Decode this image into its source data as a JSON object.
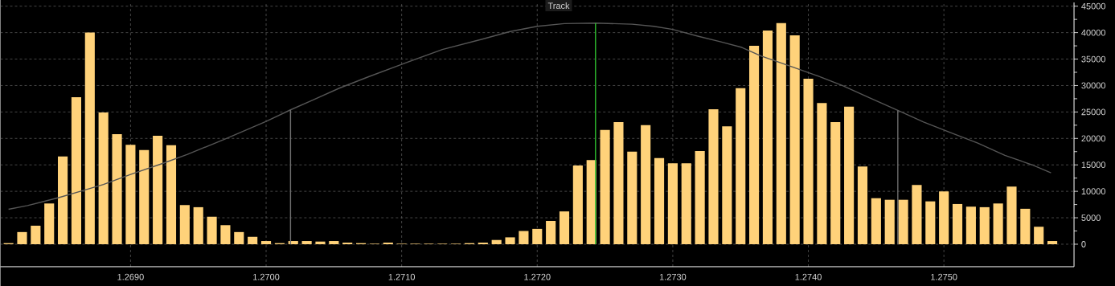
{
  "chart_data": {
    "type": "bar",
    "x": [
      1.2681,
      1.2682,
      1.2683,
      1.2684,
      1.2685,
      1.2686,
      1.2687,
      1.2688,
      1.2689,
      1.269,
      1.2691,
      1.2692,
      1.2693,
      1.2694,
      1.2695,
      1.2696,
      1.2697,
      1.2698,
      1.2699,
      1.27,
      1.2701,
      1.2702,
      1.2703,
      1.2704,
      1.2705,
      1.2706,
      1.2707,
      1.2708,
      1.2709,
      1.271,
      1.2711,
      1.2712,
      1.2713,
      1.2714,
      1.2715,
      1.2716,
      1.2717,
      1.2718,
      1.2719,
      1.272,
      1.2721,
      1.2722,
      1.2723,
      1.2724,
      1.2725,
      1.2726,
      1.2727,
      1.2728,
      1.2729,
      1.273,
      1.2731,
      1.2732,
      1.2733,
      1.2734,
      1.2735,
      1.2736,
      1.2737,
      1.2738,
      1.2739,
      1.274,
      1.2741,
      1.2742,
      1.2743,
      1.2744,
      1.2745,
      1.2746,
      1.2747,
      1.2748,
      1.2749,
      1.275,
      1.2751,
      1.2752,
      1.2753,
      1.2754,
      1.2755,
      1.2756,
      1.2757,
      1.2758
    ],
    "series": [
      {
        "color": "#ffd27a",
        "values": [
          200,
          2300,
          3500,
          7700,
          16600,
          27800,
          40000,
          24900,
          20800,
          18800,
          17800,
          20500,
          18700,
          7400,
          7000,
          5200,
          3600,
          2300,
          1400,
          600,
          200,
          600,
          600,
          500,
          600,
          300,
          200,
          100,
          300,
          100,
          100,
          100,
          100,
          100,
          200,
          300,
          800,
          1300,
          2500,
          2900,
          4400,
          6200,
          14900,
          15900,
          21600,
          23100,
          17500,
          22500,
          16300,
          15300,
          15300,
          17600,
          25500,
          22300,
          29500,
          37500,
          40400,
          41800,
          39500,
          31300,
          26700,
          23100,
          26000,
          14700,
          8700,
          8400,
          8400,
          11200,
          8100,
          10000,
          7600,
          7100,
          7000,
          7700,
          10900,
          6700,
          3300,
          600
        ]
      },
      {
        "type": "line",
        "color": "#555555",
        "x": [
          1.2681,
          1.26824,
          1.26847,
          1.26863,
          1.2688,
          1.269,
          1.26924,
          1.26942,
          1.2697,
          1.27,
          1.27018,
          1.27034,
          1.27054,
          1.27076,
          1.271,
          1.2713,
          1.2716,
          1.2718,
          1.272,
          1.2722,
          1.27243,
          1.2727,
          1.27286,
          1.273,
          1.27319,
          1.27335,
          1.27351,
          1.27365,
          1.27385,
          1.27405,
          1.27425,
          1.27445,
          1.27466,
          1.27485,
          1.27505,
          1.27525,
          1.27545,
          1.27565,
          1.27579
        ],
        "values": [
          6600,
          7300,
          8800,
          10000,
          11300,
          13200,
          15300,
          17000,
          19900,
          23200,
          25400,
          27200,
          29500,
          31700,
          34000,
          36800,
          38800,
          40200,
          41200,
          41700,
          41800,
          41600,
          41200,
          40600,
          39300,
          38300,
          37200,
          35600,
          33800,
          32000,
          30000,
          27700,
          25300,
          23100,
          21100,
          19100,
          16800,
          15000,
          13500
        ]
      }
    ],
    "xlim": [
      1.26804,
      1.27596
    ],
    "ylim": [
      -4250,
      45700
    ],
    "xticks": [
      {
        "value": 1.269,
        "label": "1.2690"
      },
      {
        "value": 1.27,
        "label": "1.2700"
      },
      {
        "value": 1.271,
        "label": "1.2710"
      },
      {
        "value": 1.272,
        "label": "1.2720"
      },
      {
        "value": 1.273,
        "label": "1.2730"
      },
      {
        "value": 1.274,
        "label": "1.2740"
      },
      {
        "value": 1.275,
        "label": "1.2750"
      }
    ],
    "yticks": [
      0,
      5000,
      10000,
      15000,
      20000,
      25000,
      30000,
      35000,
      40000,
      45000
    ],
    "grid": true,
    "ref_lines": [
      {
        "axis": "x",
        "value": 1.27018,
        "color": "#6e6e6e"
      },
      {
        "axis": "x",
        "value": 1.27466,
        "color": "#6e6e6e"
      },
      {
        "axis": "x",
        "value": 1.27243,
        "color": "#2fbf2f"
      }
    ],
    "annotations": [
      "Track"
    ]
  }
}
